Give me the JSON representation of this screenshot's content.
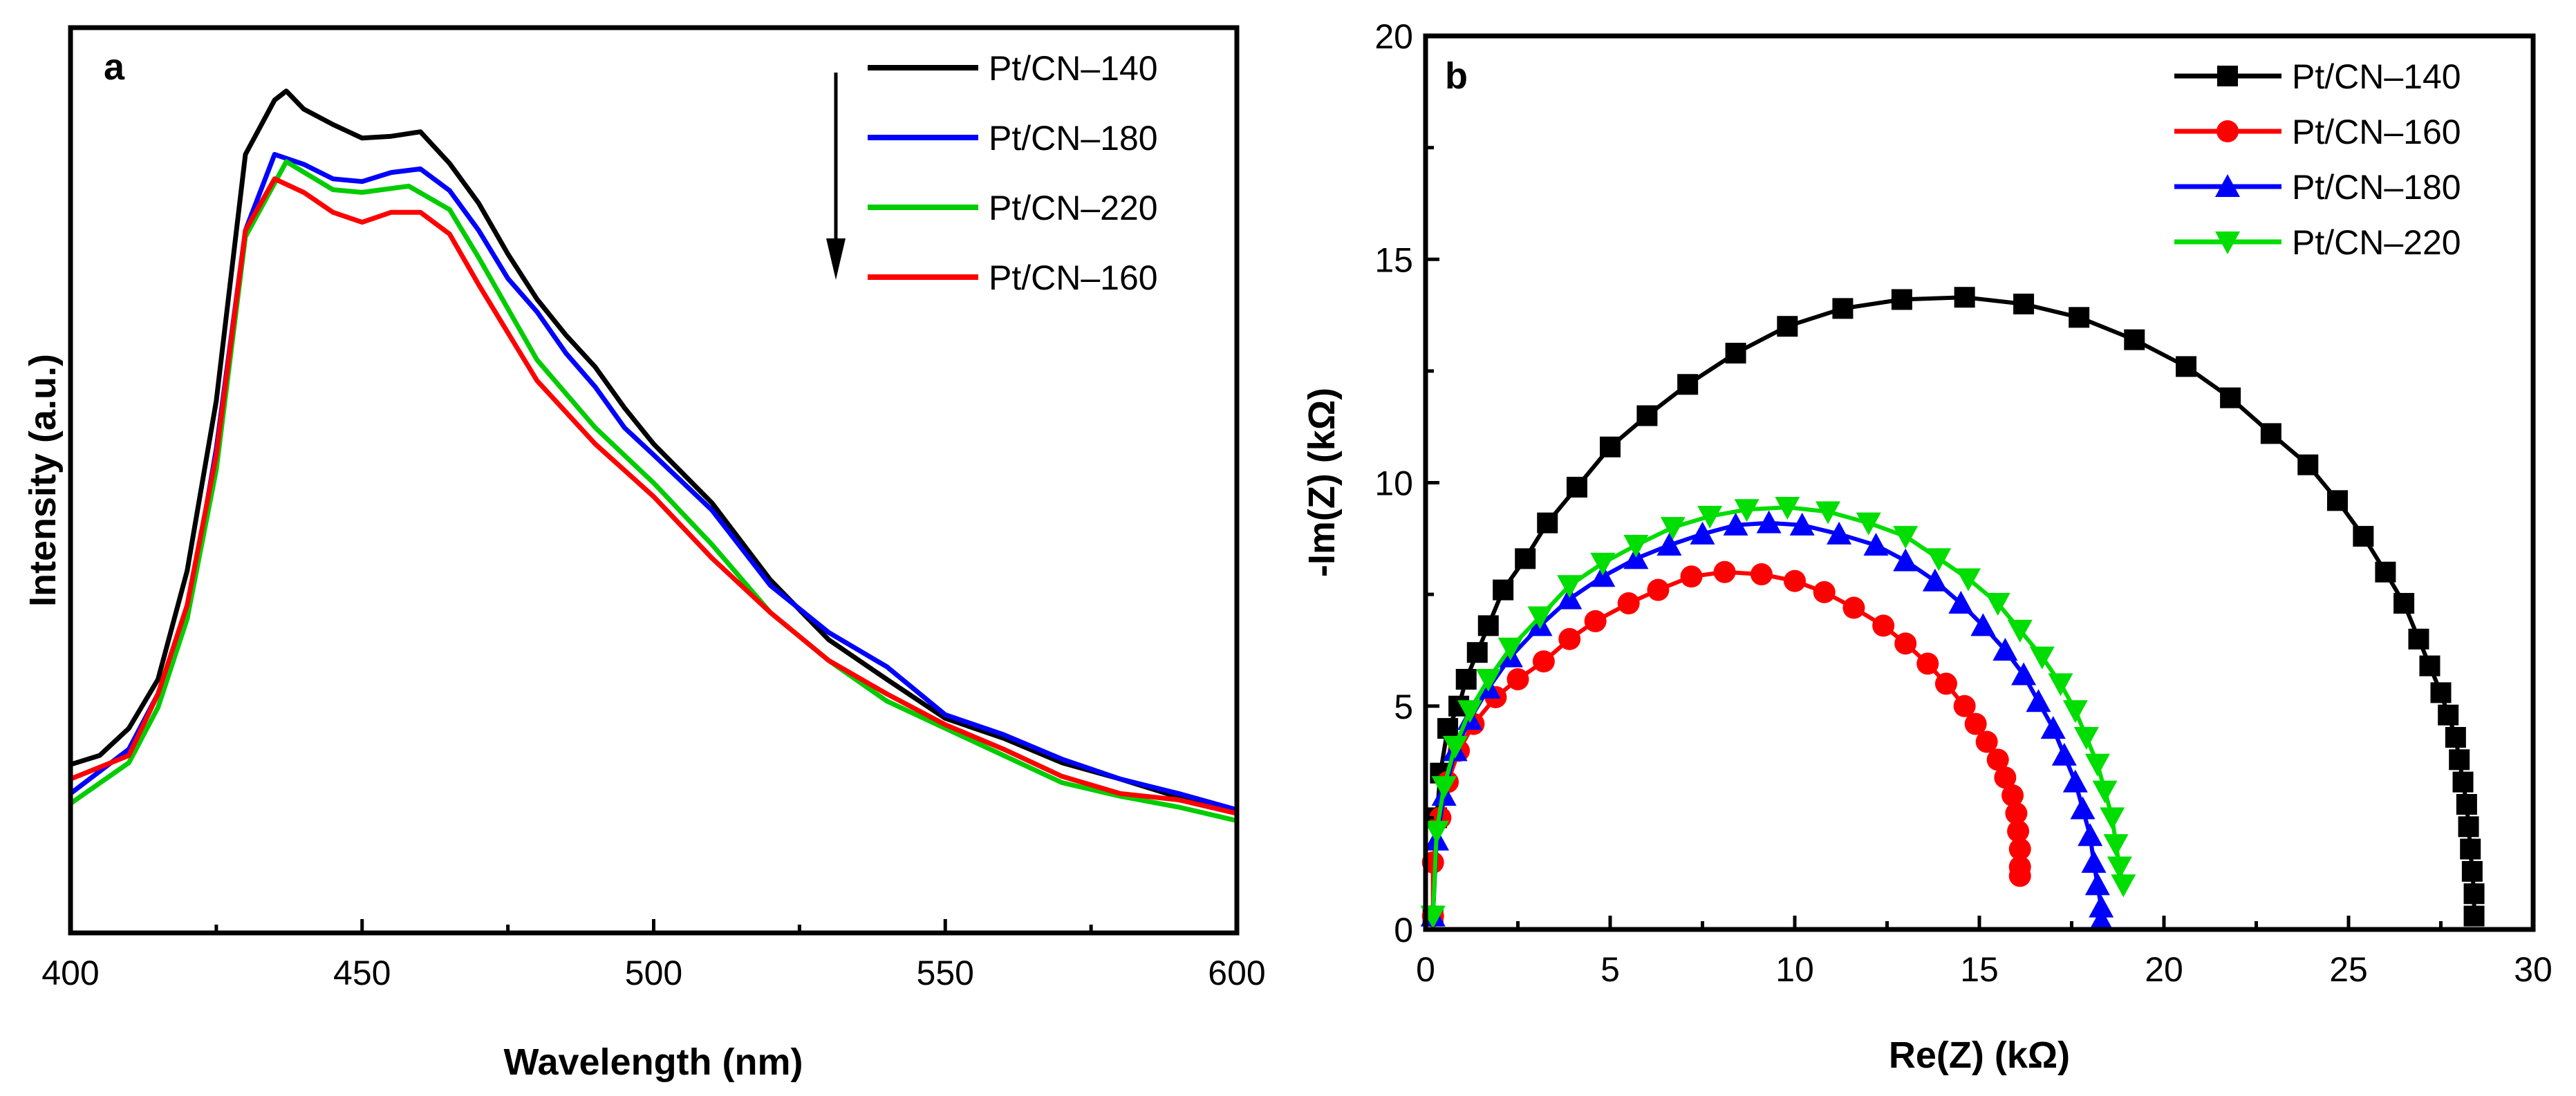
{
  "chart_data": [
    {
      "type": "line",
      "panel_label": "a",
      "xlabel": "Wavelength (nm)",
      "ylabel": "Intensity (a.u.)",
      "xlim": [
        400,
        600
      ],
      "ylim": [
        0,
        100
      ],
      "xticks": [
        "400",
        "450",
        "500",
        "550",
        "600"
      ],
      "legend_position": "top-right",
      "legend_arrow": "downward arrow indicating decreasing intensity order",
      "series": [
        {
          "name": "Pt/CN–140",
          "color": "#000000",
          "x": [
            400,
            405,
            410,
            415,
            420,
            425,
            430,
            435,
            437,
            440,
            445,
            450,
            455,
            460,
            465,
            470,
            475,
            480,
            485,
            490,
            495,
            500,
            510,
            520,
            530,
            540,
            550,
            560,
            570,
            580,
            590,
            600
          ],
          "y": [
            18.6,
            19.6,
            22.6,
            28,
            40,
            58.8,
            86,
            92,
            93,
            91,
            89.3,
            87.8,
            88,
            88.5,
            85,
            80.6,
            75,
            70,
            66,
            62.5,
            58,
            54,
            47.5,
            39,
            32.4,
            28,
            23.7,
            21.5,
            18.8,
            17,
            15,
            13.6
          ]
        },
        {
          "name": "Pt/CN–180",
          "color": "#0000ff",
          "x": [
            400,
            410,
            415,
            420,
            425,
            430,
            435,
            440,
            445,
            450,
            455,
            460,
            465,
            470,
            475,
            480,
            485,
            490,
            495,
            500,
            510,
            520,
            530,
            540,
            550,
            560,
            570,
            580,
            590,
            600
          ],
          "y": [
            15.4,
            20.3,
            26.4,
            34.7,
            53.5,
            77.6,
            86,
            84.9,
            83.3,
            83,
            84,
            84.4,
            82,
            77.6,
            72.3,
            68.6,
            64,
            60.3,
            55.8,
            52.8,
            46.7,
            38.4,
            33.2,
            29.4,
            24.1,
            21.9,
            19.2,
            17,
            15.4,
            13.6
          ]
        },
        {
          "name": "Pt/CN–220",
          "color": "#00cc00",
          "x": [
            400,
            410,
            415,
            420,
            425,
            430,
            437,
            445,
            450,
            458,
            465,
            470,
            480,
            490,
            500,
            510,
            520,
            530,
            540,
            550,
            560,
            570,
            580,
            590,
            600
          ],
          "y": [
            14.3,
            18.8,
            24.9,
            34.7,
            51.2,
            76.9,
            85.2,
            82.1,
            81.8,
            82.5,
            79.9,
            74.6,
            63.3,
            55.8,
            49.7,
            42.9,
            35.4,
            30.1,
            25.6,
            22.6,
            19.6,
            16.6,
            15.1,
            13.9,
            12.4
          ]
        },
        {
          "name": "Pt/CN–160",
          "color": "#ff0000",
          "x": [
            400,
            410,
            415,
            420,
            425,
            430,
            435,
            440,
            445,
            450,
            455,
            460,
            465,
            470,
            480,
            490,
            500,
            510,
            520,
            530,
            540,
            550,
            560,
            570,
            580,
            590,
            600
          ],
          "y": [
            17,
            19.6,
            26.4,
            36.2,
            52.8,
            77.6,
            83.3,
            81.8,
            79.6,
            78.5,
            79.6,
            79.6,
            77.2,
            71.6,
            61,
            54,
            48.2,
            41.4,
            35.4,
            30.1,
            26.4,
            23,
            20.3,
            17.3,
            15.4,
            14.7,
            13.2
          ]
        }
      ]
    },
    {
      "type": "scatter",
      "panel_label": "b",
      "xlabel": "Re(Z) (kΩ)",
      "ylabel": "-Im(Z) (kΩ)",
      "xlim": [
        0,
        30
      ],
      "ylim": [
        0,
        20
      ],
      "xticks": [
        "0",
        "5",
        "10",
        "15",
        "20",
        "25",
        "30"
      ],
      "yticks": [
        "0",
        "5",
        "10",
        "15",
        "20"
      ],
      "legend_position": "top-right",
      "series": [
        {
          "name": "Pt/CN–140",
          "color": "#000000",
          "marker": "square",
          "points": [
            [
              0.2,
              0.3
            ],
            [
              0.3,
              2.5
            ],
            [
              0.4,
              3.5
            ],
            [
              0.6,
              4.5
            ],
            [
              0.9,
              5.0
            ],
            [
              1.1,
              5.6
            ],
            [
              1.4,
              6.2
            ],
            [
              1.7,
              6.8
            ],
            [
              2.1,
              7.6
            ],
            [
              2.7,
              8.3
            ],
            [
              3.3,
              9.1
            ],
            [
              4.1,
              9.9
            ],
            [
              5.0,
              10.8
            ],
            [
              6.0,
              11.5
            ],
            [
              7.1,
              12.2
            ],
            [
              8.4,
              12.9
            ],
            [
              9.8,
              13.5
            ],
            [
              11.3,
              13.9
            ],
            [
              12.9,
              14.1
            ],
            [
              14.6,
              14.15
            ],
            [
              16.2,
              14.0
            ],
            [
              17.7,
              13.7
            ],
            [
              19.2,
              13.2
            ],
            [
              20.6,
              12.6
            ],
            [
              21.8,
              11.9
            ],
            [
              22.9,
              11.1
            ],
            [
              23.9,
              10.4
            ],
            [
              24.7,
              9.6
            ],
            [
              25.4,
              8.8
            ],
            [
              26.0,
              8.0
            ],
            [
              26.5,
              7.3
            ],
            [
              26.9,
              6.5
            ],
            [
              27.2,
              5.9
            ],
            [
              27.5,
              5.3
            ],
            [
              27.7,
              4.8
            ],
            [
              27.9,
              4.3
            ],
            [
              28.0,
              3.8
            ],
            [
              28.1,
              3.3
            ],
            [
              28.2,
              2.8
            ],
            [
              28.25,
              2.3
            ],
            [
              28.3,
              1.8
            ],
            [
              28.35,
              1.3
            ],
            [
              28.4,
              0.8
            ],
            [
              28.4,
              0.3
            ]
          ]
        },
        {
          "name": "Pt/CN–160",
          "color": "#ff0000",
          "marker": "circle",
          "points": [
            [
              0.2,
              0.3
            ],
            [
              0.2,
              1.5
            ],
            [
              0.4,
              2.5
            ],
            [
              0.6,
              3.3
            ],
            [
              0.9,
              4.0
            ],
            [
              1.3,
              4.6
            ],
            [
              1.9,
              5.2
            ],
            [
              2.5,
              5.6
            ],
            [
              3.2,
              6.0
            ],
            [
              3.9,
              6.5
            ],
            [
              4.6,
              6.9
            ],
            [
              5.5,
              7.3
            ],
            [
              6.3,
              7.6
            ],
            [
              7.2,
              7.9
            ],
            [
              8.1,
              8.0
            ],
            [
              9.1,
              7.95
            ],
            [
              10.0,
              7.8
            ],
            [
              10.8,
              7.55
            ],
            [
              11.6,
              7.2
            ],
            [
              12.4,
              6.8
            ],
            [
              13.0,
              6.4
            ],
            [
              13.6,
              5.95
            ],
            [
              14.1,
              5.5
            ],
            [
              14.6,
              5.0
            ],
            [
              14.9,
              4.6
            ],
            [
              15.2,
              4.2
            ],
            [
              15.5,
              3.8
            ],
            [
              15.7,
              3.4
            ],
            [
              15.9,
              3.0
            ],
            [
              16.0,
              2.6
            ],
            [
              16.05,
              2.2
            ],
            [
              16.1,
              1.8
            ],
            [
              16.1,
              1.4
            ],
            [
              16.1,
              1.2
            ]
          ]
        },
        {
          "name": "Pt/CN–180",
          "color": "#0000ff",
          "marker": "triangle-up",
          "points": [
            [
              0.2,
              0.3
            ],
            [
              0.3,
              2.0
            ],
            [
              0.5,
              3.0
            ],
            [
              0.8,
              4.0
            ],
            [
              1.2,
              4.7
            ],
            [
              1.7,
              5.4
            ],
            [
              2.3,
              6.1
            ],
            [
              3.1,
              6.8
            ],
            [
              3.9,
              7.4
            ],
            [
              4.8,
              7.9
            ],
            [
              5.7,
              8.3
            ],
            [
              6.6,
              8.6
            ],
            [
              7.5,
              8.85
            ],
            [
              8.4,
              9.05
            ],
            [
              9.3,
              9.1
            ],
            [
              10.2,
              9.05
            ],
            [
              11.2,
              8.85
            ],
            [
              12.2,
              8.6
            ],
            [
              13.0,
              8.25
            ],
            [
              13.8,
              7.8
            ],
            [
              14.5,
              7.3
            ],
            [
              15.1,
              6.8
            ],
            [
              15.7,
              6.25
            ],
            [
              16.2,
              5.7
            ],
            [
              16.6,
              5.1
            ],
            [
              17.0,
              4.5
            ],
            [
              17.3,
              3.9
            ],
            [
              17.6,
              3.3
            ],
            [
              17.8,
              2.7
            ],
            [
              18.0,
              2.1
            ],
            [
              18.1,
              1.5
            ],
            [
              18.2,
              1.0
            ],
            [
              18.3,
              0.5
            ],
            [
              18.3,
              0.2
            ]
          ]
        },
        {
          "name": "Pt/CN–220",
          "color": "#00dd00",
          "marker": "triangle-down",
          "points": [
            [
              0.2,
              0.3
            ],
            [
              0.3,
              2.2
            ],
            [
              0.5,
              3.2
            ],
            [
              0.8,
              4.1
            ],
            [
              1.2,
              4.9
            ],
            [
              1.7,
              5.6
            ],
            [
              2.3,
              6.3
            ],
            [
              3.1,
              7.0
            ],
            [
              3.9,
              7.7
            ],
            [
              4.8,
              8.2
            ],
            [
              5.7,
              8.6
            ],
            [
              6.7,
              9.0
            ],
            [
              7.7,
              9.25
            ],
            [
              8.7,
              9.4
            ],
            [
              9.8,
              9.45
            ],
            [
              10.9,
              9.35
            ],
            [
              12.0,
              9.1
            ],
            [
              13.0,
              8.8
            ],
            [
              13.9,
              8.3
            ],
            [
              14.7,
              7.85
            ],
            [
              15.5,
              7.3
            ],
            [
              16.1,
              6.7
            ],
            [
              16.7,
              6.1
            ],
            [
              17.2,
              5.5
            ],
            [
              17.6,
              4.9
            ],
            [
              17.9,
              4.3
            ],
            [
              18.2,
              3.7
            ],
            [
              18.4,
              3.1
            ],
            [
              18.6,
              2.5
            ],
            [
              18.7,
              1.9
            ],
            [
              18.8,
              1.4
            ],
            [
              18.9,
              1.0
            ]
          ]
        }
      ]
    }
  ]
}
